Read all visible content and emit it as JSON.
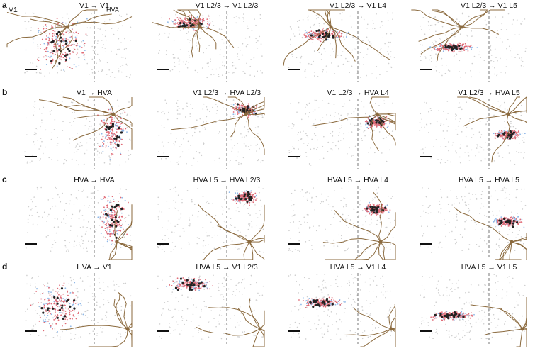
{
  "rows": [
    {
      "label": "a",
      "titles": [
        "V1 → V1",
        "V1 L2/3 → V1 L2/3",
        "V1 L2/3 → V1 L4",
        "V1 L2/3 → V1 L5"
      ]
    },
    {
      "label": "b",
      "titles": [
        "V1 → HVA",
        "V1 L2/3 → HVA L2/3",
        "V1 L2/3 → HVA L4",
        "V1 L2/3 → HVA L5"
      ]
    },
    {
      "label": "c",
      "titles": [
        "HVA → HVA",
        "HVA L5 → HVA L2/3",
        "HVA L5 → HVA L4",
        "HVA L5 → HVA L5"
      ]
    },
    {
      "label": "d",
      "titles": [
        "HVA → V1",
        "HVA L5 → V1 L2/3",
        "HVA L5 → V1 L4",
        "HVA L5 → V1 L5"
      ]
    }
  ],
  "region_labels": {
    "left": "V1",
    "right": "HVA"
  }
}
